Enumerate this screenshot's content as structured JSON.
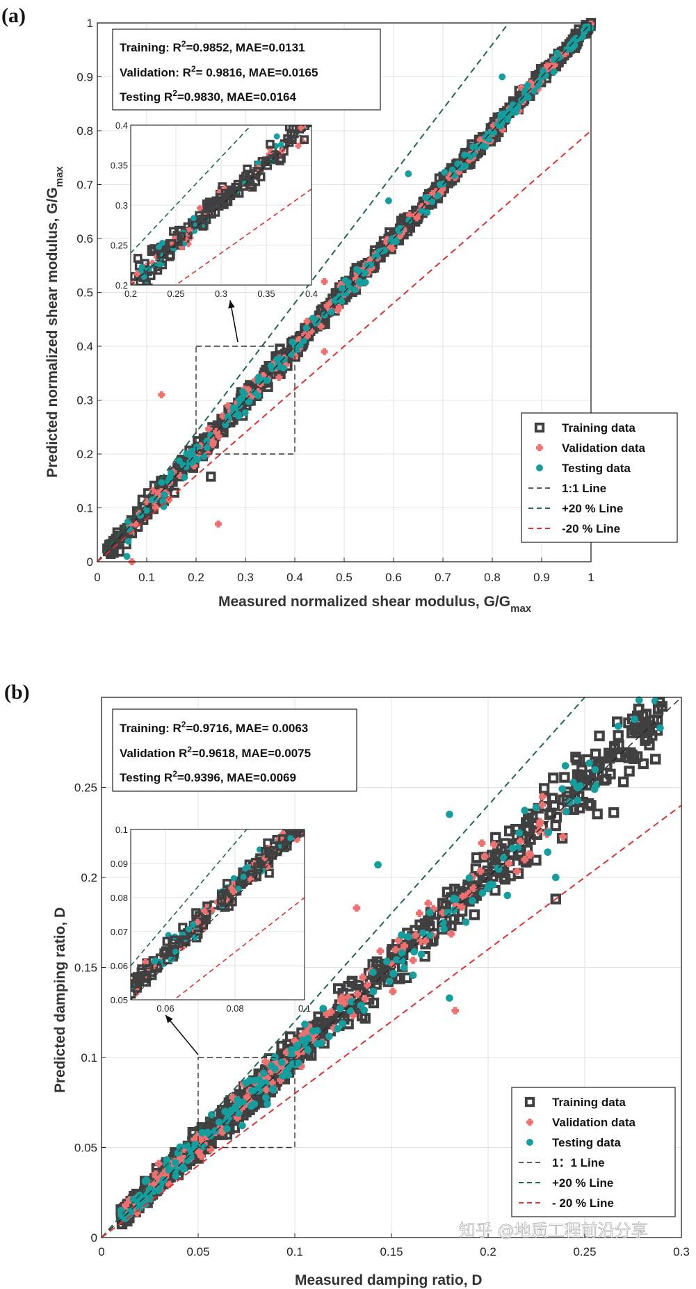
{
  "colors": {
    "training": "#404040",
    "validation": "#f07070",
    "testing": "#149e9e",
    "line_1to1": "#222222",
    "line_plus20": "#1f6650",
    "line_minus20": "#e03030",
    "grid": "#e2e2e2"
  },
  "watermark": "知乎 @地质工程前沿分享",
  "chart_data": [
    {
      "type": "scatter",
      "panel_label": "(a)",
      "xlabel": "Measured normalized shear modulus,  G/G",
      "xlabel_sub": "max",
      "ylabel": "Predicted normalized shear modulus,  G/G",
      "ylabel_sub": "max",
      "xlim": [
        0,
        1
      ],
      "ylim": [
        0,
        1
      ],
      "xticks": [
        "0",
        "0.1",
        "0.2",
        "0.3",
        "0.4",
        "0.5",
        "0.6",
        "0.7",
        "0.8",
        "0.9",
        "1"
      ],
      "yticks": [
        "0",
        "0.1",
        "0.2",
        "0.3",
        "0.4",
        "0.5",
        "0.6",
        "0.7",
        "0.8",
        "0.9",
        "1"
      ],
      "stats": [
        {
          "label": "Training: R",
          "sup": "2",
          "rest": "=0.9852, MAE=0.0131"
        },
        {
          "label": "Validation: R",
          "sup": "2",
          "rest": "= 0.9816, MAE=0.0165"
        },
        {
          "label": "Testing R",
          "sup": "2",
          "rest": "=0.9830, MAE=0.0164"
        }
      ],
      "legend": [
        {
          "key": "training",
          "label": "Training data"
        },
        {
          "key": "validation",
          "label": "Validation data"
        },
        {
          "key": "testing",
          "label": "Testing data"
        },
        {
          "key": "line_1to1",
          "label": "1:1 Line"
        },
        {
          "key": "line_plus20",
          "label": "+20 % Line"
        },
        {
          "key": "line_minus20",
          "label": "-20 % Line"
        }
      ],
      "legend_position": "lower-right",
      "lines": {
        "one_to_one": 1.0,
        "plus": 1.2,
        "minus": 0.8
      },
      "zoom_region": {
        "x": [
          0.2,
          0.4
        ],
        "y": [
          0.2,
          0.4
        ]
      },
      "inset": {
        "xlim": [
          0.2,
          0.4
        ],
        "ylim": [
          0.2,
          0.4
        ],
        "xticks": [
          "0.2",
          "0.25",
          "0.3",
          "0.35",
          "0.4"
        ],
        "yticks": [
          "0.2",
          "0.25",
          "0.3",
          "0.35",
          "0.4"
        ],
        "n_points": 220
      },
      "series": [
        {
          "name": "Training data",
          "key": "training",
          "marker": "square",
          "n_points": 900,
          "x_range": [
            0.02,
            1.0
          ],
          "noise": 0.022
        },
        {
          "name": "Validation data",
          "key": "validation",
          "marker": "plus",
          "n_points": 200,
          "x_range": [
            0.05,
            1.0
          ],
          "noise": 0.025
        },
        {
          "name": "Testing data",
          "key": "testing",
          "marker": "circle",
          "n_points": 200,
          "x_range": [
            0.05,
            1.0
          ],
          "noise": 0.024
        }
      ],
      "outliers": [
        {
          "key": "validation",
          "x": 0.13,
          "y": 0.31
        },
        {
          "key": "validation",
          "x": 0.245,
          "y": 0.07
        },
        {
          "key": "validation",
          "x": 0.07,
          "y": 0.0
        },
        {
          "key": "testing",
          "x": 0.06,
          "y": 0.01
        },
        {
          "key": "training",
          "x": 0.23,
          "y": 0.158
        },
        {
          "key": "testing",
          "x": 0.59,
          "y": 0.67
        },
        {
          "key": "testing",
          "x": 0.63,
          "y": 0.72
        },
        {
          "key": "testing",
          "x": 0.82,
          "y": 0.9
        },
        {
          "key": "validation",
          "x": 0.46,
          "y": 0.39
        },
        {
          "key": "validation",
          "x": 0.46,
          "y": 0.52
        }
      ]
    },
    {
      "type": "scatter",
      "panel_label": "(b)",
      "xlabel": "Measured damping ratio, D",
      "ylabel": "Predicted damping ratio, D",
      "xlim": [
        0,
        0.3
      ],
      "ylim": [
        0,
        0.3
      ],
      "xticks": [
        "0",
        "0.05",
        "0.1",
        "0.15",
        "0.2",
        "0.25",
        "0.3"
      ],
      "yticks": [
        "0",
        "0.05",
        "0.1",
        "0.15",
        "0.2",
        "0.25"
      ],
      "stats": [
        {
          "label": "Training: R",
          "sup": "2",
          "rest": "=0.9716, MAE= 0.0063"
        },
        {
          "label": "Validation R",
          "sup": "2",
          "rest": "=0.9618, MAE=0.0075"
        },
        {
          "label": "Testing R",
          "sup": "2",
          "rest": "=0.9396, MAE=0.0069"
        }
      ],
      "legend": [
        {
          "key": "training",
          "label": "Training data"
        },
        {
          "key": "validation",
          "label": "Validation data"
        },
        {
          "key": "testing",
          "label": "Testing data"
        },
        {
          "key": "line_1to1",
          "label": "1：1 Line"
        },
        {
          "key": "line_plus20",
          "label": "+20 % Line"
        },
        {
          "key": "line_minus20",
          "label": "- 20 % Line"
        }
      ],
      "legend_position": "lower-right",
      "lines": {
        "one_to_one": 1.0,
        "plus": 1.2,
        "minus": 0.8
      },
      "zoom_region": {
        "x": [
          0.05,
          0.1
        ],
        "y": [
          0.05,
          0.1
        ]
      },
      "inset": {
        "xlim": [
          0.05,
          0.1
        ],
        "ylim": [
          0.05,
          0.1
        ],
        "xticks": [
          "0.06",
          "0.08",
          "0.1"
        ],
        "yticks": [
          "0.05",
          "0.06",
          "0.07",
          "0.08",
          "0.09",
          "0.1"
        ],
        "n_points": 260
      },
      "series": [
        {
          "name": "Training data",
          "key": "training",
          "marker": "square",
          "n_points": 800,
          "x_range": [
            0.01,
            0.29
          ],
          "noise": 0.008
        },
        {
          "name": "Validation data",
          "key": "validation",
          "marker": "plus",
          "n_points": 180,
          "x_range": [
            0.01,
            0.24
          ],
          "noise": 0.009
        },
        {
          "name": "Testing data",
          "key": "testing",
          "marker": "circle",
          "n_points": 180,
          "x_range": [
            0.01,
            0.29
          ],
          "noise": 0.01
        }
      ],
      "outliers": [
        {
          "key": "training",
          "x": 0.29,
          "y": 0.295
        },
        {
          "key": "testing",
          "x": 0.289,
          "y": 0.283
        },
        {
          "key": "testing",
          "x": 0.24,
          "y": 0.262
        },
        {
          "key": "testing",
          "x": 0.18,
          "y": 0.235
        },
        {
          "key": "testing",
          "x": 0.143,
          "y": 0.207
        },
        {
          "key": "validation",
          "x": 0.132,
          "y": 0.183
        },
        {
          "key": "validation",
          "x": 0.183,
          "y": 0.126
        },
        {
          "key": "testing",
          "x": 0.18,
          "y": 0.133
        },
        {
          "key": "training",
          "x": 0.26,
          "y": 0.254
        },
        {
          "key": "training",
          "x": 0.265,
          "y": 0.236
        },
        {
          "key": "training",
          "x": 0.252,
          "y": 0.241
        },
        {
          "key": "testing",
          "x": 0.205,
          "y": 0.205
        },
        {
          "key": "testing",
          "x": 0.21,
          "y": 0.19
        },
        {
          "key": "testing",
          "x": 0.235,
          "y": 0.2
        },
        {
          "key": "training",
          "x": 0.235,
          "y": 0.188
        }
      ]
    }
  ]
}
